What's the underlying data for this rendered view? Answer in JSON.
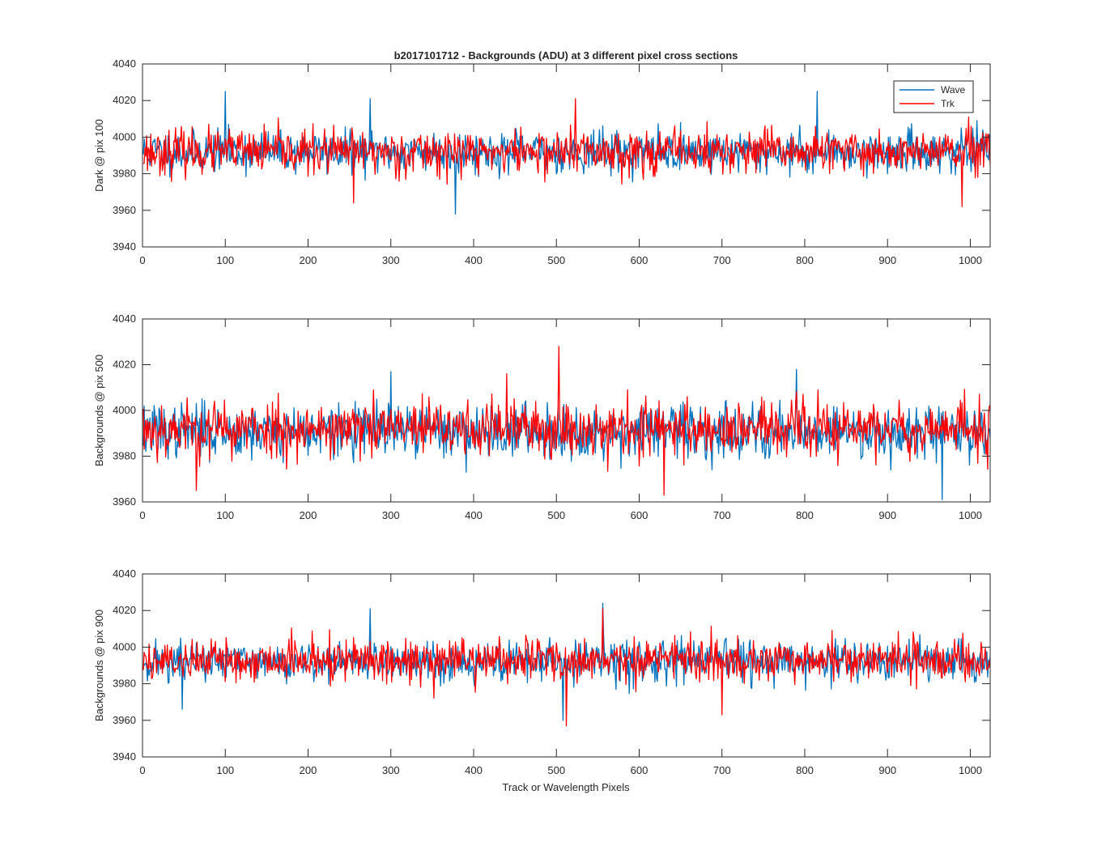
{
  "figure": {
    "title": "b2017101712 - Backgrounds (ADU) at 3 different pixel cross sections",
    "xlabel": "Track or Wavelength Pixels"
  },
  "colors": {
    "wave": "#0072BD",
    "trk": "#FF0000",
    "axis": "#262626"
  },
  "legend": [
    {
      "name": "Wave",
      "color": "#0072BD"
    },
    {
      "name": "Trk",
      "color": "#FF0000"
    }
  ],
  "chart_data": [
    {
      "type": "line",
      "title": "b2017101712 - Backgrounds (ADU) at 3 different pixel cross sections",
      "xlabel": "",
      "ylabel": "Dark @ pix 100",
      "xlim": [
        0,
        1024
      ],
      "ylim": [
        3940,
        4040
      ],
      "xticks": [
        0,
        100,
        200,
        300,
        400,
        500,
        600,
        700,
        800,
        900,
        1000
      ],
      "xtick_labels": [
        "0",
        "100",
        "200",
        "300",
        "400",
        "500",
        "600",
        "700",
        "800",
        "900",
        "1000"
      ],
      "yticks": [
        3940,
        3960,
        3980,
        4000,
        4020,
        4040
      ],
      "ytick_labels": [
        "3940",
        "3960",
        "3980",
        "4000",
        "4020",
        "4040"
      ],
      "legend_position": "top-right",
      "series": [
        {
          "name": "Wave",
          "base": 3992,
          "noise": 5.5,
          "seed": 11,
          "spikes": [
            [
              100,
              4025
            ],
            [
              275,
              4021
            ],
            [
              378,
              3958
            ],
            [
              815,
              4025
            ],
            [
              1015,
              4004
            ]
          ]
        },
        {
          "name": "Trk",
          "base": 3992,
          "noise": 6.0,
          "seed": 23,
          "spikes": [
            [
              523,
              4021
            ],
            [
              255,
              3964
            ],
            [
              990,
              3962
            ]
          ]
        }
      ]
    },
    {
      "type": "line",
      "xlabel": "",
      "ylabel": "Backgrounds @ pix 500",
      "xlim": [
        0,
        1024
      ],
      "ylim": [
        3960,
        4040
      ],
      "xticks": [
        0,
        100,
        200,
        300,
        400,
        500,
        600,
        700,
        800,
        900,
        1000
      ],
      "xtick_labels": [
        "0",
        "100",
        "200",
        "300",
        "400",
        "500",
        "600",
        "700",
        "800",
        "900",
        "1000"
      ],
      "yticks": [
        3960,
        3980,
        4000,
        4020,
        4040
      ],
      "ytick_labels": [
        "3960",
        "3980",
        "4000",
        "4020",
        "4040"
      ],
      "series": [
        {
          "name": "Wave",
          "base": 3991,
          "noise": 5.8,
          "seed": 37,
          "spikes": [
            [
              300,
              4017
            ],
            [
              790,
              4018
            ],
            [
              966,
              3961
            ]
          ]
        },
        {
          "name": "Trk",
          "base": 3992,
          "noise": 6.2,
          "seed": 53,
          "spikes": [
            [
              503,
              4028
            ],
            [
              65,
              3965
            ],
            [
              630,
              3963
            ],
            [
              440,
              4016
            ]
          ]
        }
      ]
    },
    {
      "type": "line",
      "xlabel": "Track or Wavelength Pixels",
      "ylabel": "Backgrounds @ pix 900",
      "xlim": [
        0,
        1024
      ],
      "ylim": [
        3940,
        4040
      ],
      "xticks": [
        0,
        100,
        200,
        300,
        400,
        500,
        600,
        700,
        800,
        900,
        1000
      ],
      "xtick_labels": [
        "0",
        "100",
        "200",
        "300",
        "400",
        "500",
        "600",
        "700",
        "800",
        "900",
        "1000"
      ],
      "yticks": [
        3940,
        3960,
        3980,
        4000,
        4020,
        4040
      ],
      "ytick_labels": [
        "3940",
        "3960",
        "3980",
        "4000",
        "4020",
        "4040"
      ],
      "series": [
        {
          "name": "Wave",
          "base": 3992,
          "noise": 5.5,
          "seed": 71,
          "spikes": [
            [
              556,
              4024
            ],
            [
              508,
              3960
            ],
            [
              275,
              4021
            ],
            [
              48,
              3966
            ]
          ]
        },
        {
          "name": "Trk",
          "base": 3993,
          "noise": 5.8,
          "seed": 89,
          "spikes": [
            [
              512,
              3957
            ],
            [
              700,
              3963
            ],
            [
              556,
              4021
            ]
          ]
        }
      ]
    }
  ]
}
